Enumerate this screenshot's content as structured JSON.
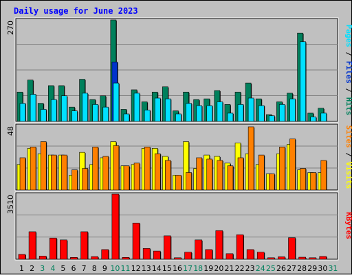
{
  "title": "Daily usage for June 2023",
  "colors": {
    "hits": "#00805c",
    "files": "#0033cc",
    "pages": "#00e0ff",
    "visits": "#ffff00",
    "sites": "#ff8000",
    "kbytes": "#ff0000",
    "weekend_label": "#00805c",
    "weekday_label": "#000000",
    "panel_bg": "#c0c0c0",
    "grid": "#808080",
    "title": "#0000ff"
  },
  "right_labels": {
    "top": [
      {
        "text": "Pages",
        "color": "#00e0ff"
      },
      {
        "text": " / ",
        "color": "#000000"
      },
      {
        "text": "Files",
        "color": "#0033cc"
      },
      {
        "text": " / ",
        "color": "#000000"
      },
      {
        "text": "Hits",
        "color": "#00805c"
      }
    ],
    "middle": [
      {
        "text": "Sites",
        "color": "#ff8000"
      },
      {
        "text": " / ",
        "color": "#000000"
      },
      {
        "text": "Visits",
        "color": "#ffff00"
      }
    ],
    "bottom": [
      {
        "text": "KBytes",
        "color": "#ff0000"
      }
    ]
  },
  "chart_data": [
    {
      "type": "bar",
      "panel": "top",
      "ymax_label": "270",
      "ylim": [
        0,
        270
      ],
      "categories": [
        "1",
        "2",
        "3",
        "4",
        "5",
        "6",
        "7",
        "8",
        "9",
        "10",
        "11",
        "12",
        "13",
        "14",
        "15",
        "16",
        "17",
        "18",
        "19",
        "20",
        "21",
        "22",
        "23",
        "24",
        "25",
        "26",
        "27",
        "28",
        "29",
        "30",
        "31"
      ],
      "weekend_days": [
        "3",
        "4",
        "10",
        "11",
        "17",
        "18",
        "24",
        "25",
        "31"
      ],
      "series": [
        {
          "name": "Hits",
          "values": [
            78,
            110,
            48,
            95,
            95,
            38,
            112,
            58,
            68,
            270,
            32,
            84,
            52,
            78,
            92,
            28,
            78,
            58,
            60,
            82,
            45,
            78,
            102,
            60,
            18,
            52,
            75,
            235,
            22,
            35,
            0
          ]
        },
        {
          "name": "Files",
          "values": [
            0,
            0,
            0,
            0,
            0,
            0,
            0,
            0,
            0,
            158,
            0,
            0,
            0,
            0,
            0,
            0,
            0,
            0,
            0,
            0,
            0,
            0,
            0,
            0,
            0,
            0,
            0,
            0,
            0,
            0,
            0
          ]
        },
        {
          "name": "Pages",
          "values": [
            48,
            72,
            32,
            58,
            68,
            28,
            75,
            45,
            38,
            102,
            20,
            75,
            30,
            62,
            60,
            20,
            48,
            42,
            42,
            52,
            22,
            45,
            62,
            42,
            15,
            45,
            60,
            212,
            12,
            22,
            0
          ]
        }
      ]
    },
    {
      "type": "bar",
      "panel": "middle",
      "ymax_label": "48",
      "ylim": [
        0,
        48
      ],
      "categories": [
        "1",
        "2",
        "3",
        "4",
        "5",
        "6",
        "7",
        "8",
        "9",
        "10",
        "11",
        "12",
        "13",
        "14",
        "15",
        "16",
        "17",
        "18",
        "19",
        "20",
        "21",
        "22",
        "23",
        "24",
        "25",
        "26",
        "27",
        "28",
        "29",
        "30",
        "31"
      ],
      "series": [
        {
          "name": "Visits",
          "values": [
            19,
            31,
            27,
            26,
            26,
            11,
            28,
            19,
            24,
            36,
            18,
            19,
            31,
            31,
            25,
            11,
            36,
            16,
            26,
            25,
            20,
            35,
            27,
            19,
            12,
            27,
            34,
            15,
            13,
            13,
            0
          ]
        },
        {
          "name": "Sites",
          "values": [
            24,
            32,
            36,
            26,
            26,
            15,
            16,
            32,
            25,
            33,
            18,
            20,
            32,
            27,
            22,
            11,
            13,
            24,
            23,
            22,
            18,
            24,
            47,
            26,
            12,
            32,
            38,
            16,
            13,
            22,
            0
          ]
        }
      ]
    },
    {
      "type": "bar",
      "panel": "bottom",
      "ymax_label": "3510",
      "ylim": [
        0,
        3510
      ],
      "categories": [
        "1",
        "2",
        "3",
        "4",
        "5",
        "6",
        "7",
        "8",
        "9",
        "10",
        "11",
        "12",
        "13",
        "14",
        "15",
        "16",
        "17",
        "18",
        "19",
        "20",
        "21",
        "22",
        "23",
        "24",
        "25",
        "26",
        "27",
        "28",
        "29",
        "30",
        "31"
      ],
      "series": [
        {
          "name": "KBytes",
          "values": [
            260,
            1480,
            170,
            1140,
            1040,
            100,
            1480,
            140,
            520,
            3510,
            100,
            1950,
            580,
            440,
            1260,
            80,
            380,
            1040,
            520,
            1540,
            300,
            1320,
            520,
            380,
            80,
            130,
            1160,
            110,
            80,
            150,
            0
          ]
        }
      ]
    }
  ]
}
